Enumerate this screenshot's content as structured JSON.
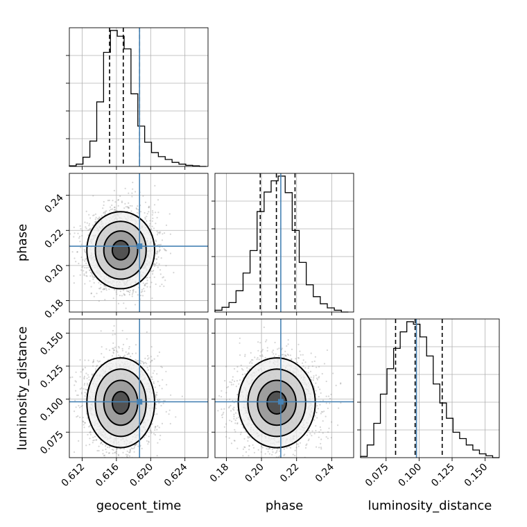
{
  "chart_data": {
    "type": "corner",
    "title": "",
    "parameters": [
      {
        "name": "geocent_time",
        "label": "geocent_time",
        "range": [
          0.6105,
          0.6267
        ],
        "ticks": [
          0.612,
          0.616,
          0.62,
          0.624
        ],
        "tick_labels": [
          "0.612",
          "0.616",
          "0.620",
          "0.624"
        ],
        "truth": 0.6187,
        "quantiles": [
          0.6152,
          0.6168,
          0.6187
        ],
        "hist_edges": [
          0.6105,
          0.6113,
          0.6121,
          0.6129,
          0.6137,
          0.6145,
          0.6153,
          0.6161,
          0.6169,
          0.6177,
          0.6185,
          0.6193,
          0.6201,
          0.6209,
          0.6217,
          0.6225,
          0.6233,
          0.6241,
          0.6249,
          0.6257,
          0.6265
        ],
        "hist_values": [
          1,
          4,
          16,
          44,
          112,
          198,
          236,
          226,
          204,
          126,
          70,
          42,
          24,
          17,
          12,
          7,
          4,
          2,
          1,
          0
        ]
      },
      {
        "name": "phase",
        "label": "phase",
        "range": [
          0.1735,
          0.2525
        ],
        "ticks": [
          0.18,
          0.2,
          0.22,
          0.24
        ],
        "tick_labels": [
          "0.18",
          "0.20",
          "0.22",
          "0.24"
        ],
        "truth": 0.211,
        "quantiles": [
          0.1993,
          0.2085,
          0.2191
        ],
        "hist_edges": [
          0.1735,
          0.1775,
          0.1815,
          0.1855,
          0.1895,
          0.1935,
          0.1975,
          0.2015,
          0.2055,
          0.2095,
          0.2135,
          0.2175,
          0.2215,
          0.2255,
          0.2295,
          0.2335,
          0.2375,
          0.2415,
          0.2455,
          0.2495
        ],
        "hist_values": [
          3,
          8,
          16,
          36,
          66,
          104,
          170,
          203,
          222,
          230,
          202,
          138,
          84,
          46,
          26,
          14,
          7,
          3,
          0
        ]
      },
      {
        "name": "luminosity_distance",
        "label": "luminosity_distance",
        "range": [
          0.0557,
          0.1607
        ],
        "ticks": [
          0.075,
          0.1,
          0.125,
          0.15
        ],
        "tick_labels": [
          "0.075",
          "0.100",
          "0.125",
          "0.150"
        ],
        "truth": 0.098,
        "quantiles": [
          0.0822,
          0.097,
          0.1175
        ],
        "hist_edges": [
          0.0557,
          0.0607,
          0.0657,
          0.0707,
          0.0757,
          0.0807,
          0.0857,
          0.0907,
          0.0957,
          0.1007,
          0.1057,
          0.1107,
          0.1157,
          0.1207,
          0.1257,
          0.1307,
          0.1357,
          0.1407,
          0.1457,
          0.1507,
          0.1557,
          0.1607
        ],
        "hist_values": [
          2,
          20,
          54,
          100,
          140,
          172,
          198,
          214,
          210,
          190,
          160,
          116,
          86,
          62,
          40,
          30,
          20,
          12,
          6,
          3,
          0
        ]
      }
    ],
    "correlations": {
      "0_1": 0.0,
      "0_2": 0.0,
      "1_2": 0.0
    },
    "contour_levels_sigma": [
      0.5,
      1.0,
      1.5,
      2.0
    ],
    "grid": true,
    "truth_color": "#4682b4",
    "hist_color": "#000000"
  }
}
